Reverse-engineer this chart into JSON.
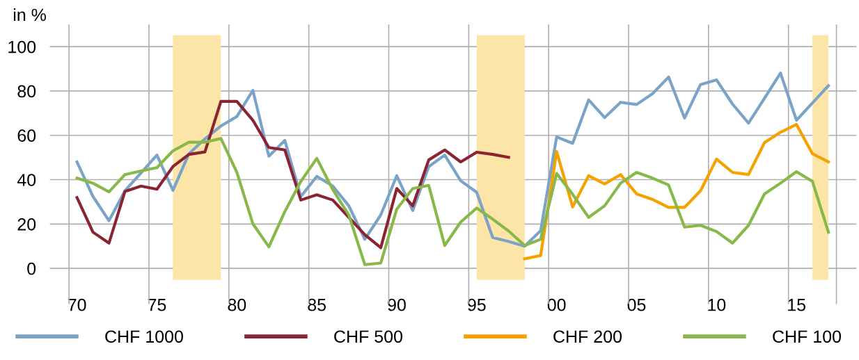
{
  "chart_data": {
    "type": "line",
    "ylabel": "in %",
    "x": [
      1970,
      1971,
      1972,
      1973,
      1974,
      1975,
      1976,
      1977,
      1978,
      1979,
      1980,
      1981,
      1982,
      1983,
      1984,
      1985,
      1986,
      1987,
      1988,
      1989,
      1990,
      1991,
      1992,
      1993,
      1994,
      1995,
      1996,
      1997,
      1998,
      1999,
      2000,
      2001,
      2002,
      2003,
      2004,
      2005,
      2006,
      2007,
      2008,
      2009,
      2010,
      2011,
      2012,
      2013,
      2014,
      2015,
      2016,
      2017
    ],
    "series": [
      {
        "name": "CHF 1000",
        "color": "#7ba3c8",
        "values": [
          48.0,
          32.4,
          21.5,
          35,
          43,
          51.1,
          35.2,
          51.7,
          58.4,
          64.2,
          68.5,
          80.3,
          50.6,
          57.7,
          32.4,
          41.5,
          37.1,
          28.2,
          13.1,
          24.1,
          41.8,
          26.1,
          45.9,
          51.1,
          39.5,
          34.3,
          13.9,
          12.1,
          10,
          17,
          59.3,
          56.4,
          76,
          68,
          74.9,
          73.9,
          78.8,
          86.3,
          67.8,
          82.9,
          85,
          74.1,
          65.5,
          76.7,
          88.1,
          66.8,
          74.6,
          82.4
        ]
      },
      {
        "name": "CHF 500",
        "color": "#8b2332",
        "values": [
          31.9,
          16.3,
          11.4,
          34.7,
          37.1,
          35.7,
          45.9,
          51.4,
          52.5,
          75.3,
          75.3,
          66.8,
          54.5,
          53.4,
          30.8,
          33.2,
          30.8,
          23,
          15.2,
          9.3,
          36,
          28.2,
          48.9,
          53.4,
          48,
          52.4,
          51.4,
          50.1,
          null,
          null,
          null,
          null,
          null,
          null,
          null,
          null,
          null,
          null,
          null,
          null,
          null,
          null,
          null,
          null,
          null,
          null,
          null,
          null
        ]
      },
      {
        "name": "CHF 200",
        "color": "#f5a100",
        "values": [
          null,
          null,
          null,
          null,
          null,
          null,
          null,
          null,
          null,
          null,
          null,
          null,
          null,
          null,
          null,
          null,
          null,
          null,
          null,
          null,
          null,
          null,
          null,
          null,
          null,
          null,
          null,
          null,
          4.3,
          5.8,
          52.7,
          27.7,
          41.8,
          38.1,
          42.3,
          33.6,
          31.1,
          27.5,
          27.5,
          35,
          49.3,
          43.3,
          42.3,
          56.7,
          61.4,
          64.9,
          51.7,
          48
        ]
      },
      {
        "name": "CHF 100",
        "color": "#88b84a",
        "values": [
          40.7,
          38.4,
          34.5,
          42.3,
          43.9,
          45.4,
          53,
          56.9,
          56.9,
          58.6,
          43.3,
          20.1,
          9.7,
          25.6,
          39.2,
          49.6,
          35.5,
          24.1,
          1.7,
          2.4,
          26.7,
          36,
          37.4,
          10.3,
          20.9,
          27.2,
          22.2,
          16.8,
          10.3,
          13.1,
          42.8,
          33.4,
          23,
          28.2,
          38.4,
          43.3,
          40.7,
          37.6,
          18.6,
          19.4,
          16.6,
          11.4,
          19.4,
          33.6,
          38.4,
          43.6,
          39.2,
          16.3
        ]
      }
    ],
    "bands": [
      {
        "axis": "x",
        "from": 1976,
        "to": 1979,
        "color": "#fde5a8"
      },
      {
        "axis": "x",
        "from": 1995,
        "to": 1998,
        "color": "#fde5a8"
      },
      {
        "axis": "x",
        "from": 2016,
        "to": 2017,
        "color": "#fde5a8"
      }
    ],
    "xlim": [
      1968.3,
      2018.75
    ],
    "xticks": [
      {
        "value": 1970,
        "label": "70"
      },
      {
        "value": 1975,
        "label": "75"
      },
      {
        "value": 1980,
        "label": "80"
      },
      {
        "value": 1985,
        "label": "85"
      },
      {
        "value": 1990,
        "label": "90"
      },
      {
        "value": 1995,
        "label": "95"
      },
      {
        "value": 2000,
        "label": "00"
      },
      {
        "value": 2005,
        "label": "05"
      },
      {
        "value": 2010,
        "label": "10"
      },
      {
        "value": 2015,
        "label": "15"
      },
      {
        "value": 1969.5,
        "label": null
      },
      {
        "value": 1974.5,
        "label": null
      },
      {
        "value": 1979.5,
        "label": null
      },
      {
        "value": 1984.5,
        "label": null
      },
      {
        "value": 1989.5,
        "label": null
      },
      {
        "value": 1994.5,
        "label": null
      },
      {
        "value": 1999.5,
        "label": null
      },
      {
        "value": 2004.5,
        "label": null
      },
      {
        "value": 2009.5,
        "label": null
      },
      {
        "value": 2014.5,
        "label": null
      },
      {
        "value": 2017.5,
        "label": null
      }
    ],
    "ylim": [
      -10,
      110
    ],
    "yticks": [
      0,
      20,
      40,
      60,
      80,
      100
    ],
    "grid": true,
    "legend": "bottom",
    "marker": "none",
    "line_style": "solid"
  }
}
